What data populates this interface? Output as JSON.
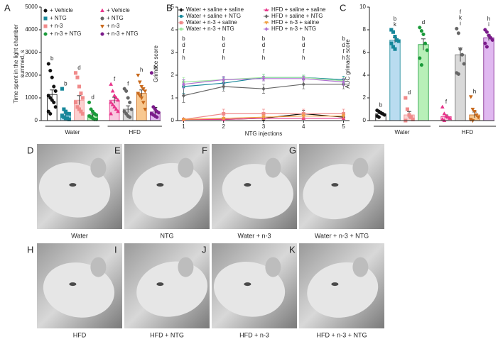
{
  "chart_data": [
    {
      "type": "bar",
      "panel": "A",
      "ylabel": [
        "Time spent in the light chamber",
        "summed, s"
      ],
      "ylim": [
        0,
        5000
      ],
      "yticks": [
        0,
        1000,
        2000,
        3000,
        4000,
        5000
      ],
      "groups": [
        {
          "name": "Water",
          "series": [
            {
              "name": "+ Vehicle",
              "color": "#111111",
              "fill": "#ffffff",
              "marker": "circle",
              "value": 1150,
              "error": 200,
              "letters": [
                "b"
              ],
              "points": [
                2500,
                2200,
                1900,
                1500,
                1300,
                1100,
                1000,
                900,
                800,
                600,
                400,
                300
              ]
            },
            {
              "name": "+ NTG",
              "color": "#16879a",
              "fill": "#b9dcf0",
              "marker": "square",
              "value": 300,
              "error": 120,
              "letters": [
                "b"
              ],
              "points": [
                1400,
                500,
                400,
                300,
                300,
                200,
                150,
                100,
                100,
                50
              ]
            },
            {
              "name": "+ n-3",
              "color": "#f08a8a",
              "fill": "#fbd0d0",
              "marker": "square",
              "value": 900,
              "error": 200,
              "letters": [
                "d"
              ],
              "points": [
                2100,
                1900,
                1500,
                1200,
                1000,
                800,
                600,
                500,
                400,
                300
              ]
            },
            {
              "name": "+ n-3 + NTG",
              "color": "#1a9a3a",
              "fill": "#b8f0b8",
              "marker": "circle",
              "value": 250,
              "error": 80,
              "letters": [
                "d"
              ],
              "points": [
                800,
                500,
                400,
                300,
                250,
                200,
                150,
                100,
                50,
                50
              ]
            }
          ]
        },
        {
          "name": "HFD",
          "series": [
            {
              "name": "+ Vehicle",
              "color": "#e8348a",
              "fill": "#f9c8e0",
              "marker": "triangle",
              "value": 900,
              "error": 130,
              "letters": [
                "f"
              ],
              "points": [
                1600,
                1300,
                1100,
                1000,
                900,
                800,
                700,
                600,
                500,
                400,
                300
              ]
            },
            {
              "name": "+ NTG",
              "color": "#666666",
              "fill": "#d9d9d9",
              "marker": "circle",
              "value": 500,
              "error": 150,
              "letters": [
                "f"
              ],
              "points": [
                1400,
                1300,
                1000,
                800,
                500,
                400,
                300,
                200,
                150
              ]
            },
            {
              "name": "+ n-3",
              "color": "#c8681a",
              "fill": "#f8c890",
              "marker": "triangle-down",
              "value": 1200,
              "error": 150,
              "letters": [
                "h"
              ],
              "points": [
                2000,
                1700,
                1500,
                1400,
                1300,
                1200,
                1100,
                1000,
                800,
                500
              ]
            },
            {
              "name": "+ n-3 + NTG",
              "color": "#7a1a8a",
              "fill": "#e0b8f0",
              "marker": "circle",
              "value": 380,
              "error": 200,
              "letters": [
                "h"
              ],
              "points": [
                2100,
                600,
                500,
                400,
                350,
                300,
                250,
                200,
                150
              ]
            }
          ]
        }
      ]
    },
    {
      "type": "line",
      "panel": "B",
      "ylabel": "Grimace score",
      "xlabel": "NTG injections",
      "x": [
        1,
        2,
        3,
        4,
        5
      ],
      "xlim": [
        0.85,
        5.15
      ],
      "xticks": [
        1,
        2,
        3,
        4,
        5
      ],
      "ylim": [
        0,
        5
      ],
      "yticks": [
        0,
        1,
        2,
        3,
        4,
        5
      ],
      "letters": [
        [
          "b",
          "d",
          "f",
          "h"
        ],
        [
          "b",
          "d",
          "f",
          "h"
        ],
        [
          "b",
          "d",
          "f",
          "h"
        ],
        [
          "b",
          "d",
          "f",
          "h"
        ],
        [
          "b",
          "d",
          "f",
          "h"
        ]
      ],
      "series": [
        {
          "name": "Water + saline + saline",
          "color": "#111111",
          "marker": "diamond",
          "values": [
            0.05,
            0.05,
            0.1,
            0.3,
            0.15
          ],
          "errors": [
            0.03,
            0.05,
            0.08,
            0.15,
            0.1
          ]
        },
        {
          "name": "Water + saline + NTG",
          "color": "#16879a",
          "marker": "circle",
          "values": [
            1.5,
            1.65,
            1.9,
            1.9,
            1.8
          ],
          "errors": [
            0.3,
            0.25,
            0.15,
            0.1,
            0.15
          ]
        },
        {
          "name": "Water + n-3 + saline",
          "color": "#f08a8a",
          "marker": "square",
          "values": [
            0.05,
            0.3,
            0.3,
            0.3,
            0.3
          ],
          "errors": [
            0.05,
            0.2,
            0.2,
            0.2,
            0.2
          ]
        },
        {
          "name": "Water + n-3 + NTG",
          "color": "#9ee89e",
          "marker": "circle",
          "values": [
            1.7,
            1.8,
            1.9,
            1.9,
            1.75
          ],
          "errors": [
            0.2,
            0.15,
            0.15,
            0.1,
            0.15
          ]
        },
        {
          "name": "HFD + saline + saline",
          "color": "#e8348a",
          "marker": "triangle",
          "values": [
            0.05,
            0.05,
            0.1,
            0.1,
            0.1
          ],
          "errors": [
            0.03,
            0.03,
            0.05,
            0.05,
            0.05
          ]
        },
        {
          "name": "HFD + saline + NTG",
          "color": "#666666",
          "marker": "diamond",
          "values": [
            1.1,
            1.5,
            1.4,
            1.6,
            1.6
          ],
          "errors": [
            0.3,
            0.2,
            0.2,
            0.2,
            0.2
          ]
        },
        {
          "name": "HFD + n-3 + saline",
          "color": "#f0a040",
          "marker": "triangle-down",
          "values": [
            0.05,
            0.1,
            0.15,
            0.2,
            0.2
          ],
          "errors": [
            0.03,
            0.05,
            0.1,
            0.1,
            0.1
          ]
        },
        {
          "name": "HFD + n-3 + NTG",
          "color": "#b070d0",
          "marker": "diamond",
          "values": [
            1.6,
            1.8,
            1.85,
            1.85,
            1.7
          ],
          "errors": [
            0.2,
            0.15,
            0.1,
            0.1,
            0.15
          ]
        }
      ]
    },
    {
      "type": "bar",
      "panel": "C",
      "ylabel": "AUC grimace score",
      "ylim": [
        0,
        10
      ],
      "yticks": [
        0,
        2,
        4,
        6,
        8,
        10
      ],
      "groups": [
        {
          "name": "Water",
          "series": [
            {
              "color": "#111111",
              "fill": "#ffffff",
              "marker": "circle",
              "value": 0.6,
              "error": 0.1,
              "letters": [
                "b"
              ],
              "points": [
                0.9,
                0.8,
                0.7,
                0.6,
                0.5,
                0.4,
                0.3
              ]
            },
            {
              "color": "#16879a",
              "fill": "#b9dcf0",
              "marker": "square",
              "value": 7.1,
              "error": 0.25,
              "letters": [
                "b",
                "k"
              ],
              "points": [
                8.0,
                7.8,
                7.4,
                7.1,
                7.0,
                6.8,
                6.5,
                6.3
              ]
            },
            {
              "color": "#f08a8a",
              "fill": "#fbd0d0",
              "marker": "square",
              "value": 0.5,
              "error": 0.3,
              "letters": [
                "d"
              ],
              "points": [
                2.0,
                1.0,
                0.5,
                0.3,
                0.1,
                0.0
              ]
            },
            {
              "color": "#1a9a3a",
              "fill": "#b8f0b8",
              "marker": "circle",
              "value": 6.7,
              "error": 0.5,
              "letters": [
                "d"
              ],
              "points": [
                8.2,
                7.9,
                7.6,
                6.8,
                6.2,
                5.5,
                4.9
              ]
            }
          ]
        },
        {
          "name": "HFD",
          "series": [
            {
              "color": "#e8348a",
              "fill": "#f9c8e0",
              "marker": "triangle",
              "value": 0.35,
              "error": 0.15,
              "letters": [
                "f"
              ],
              "points": [
                1.2,
                0.6,
                0.4,
                0.3,
                0.2,
                0.1,
                0.0
              ]
            },
            {
              "color": "#666666",
              "fill": "#d9d9d9",
              "marker": "circle",
              "value": 5.8,
              "error": 0.6,
              "letters": [
                "f",
                "k",
                "i"
              ],
              "points": [
                8.1,
                7.7,
                6.3,
                5.8,
                5.0,
                4.2,
                4.1
              ]
            },
            {
              "color": "#c8681a",
              "fill": "#f8c890",
              "marker": "triangle-down",
              "value": 0.5,
              "error": 0.25,
              "letters": [
                "h"
              ],
              "points": [
                2.1,
                1.0,
                0.8,
                0.5,
                0.3,
                0.1,
                0.0
              ]
            },
            {
              "color": "#7a1a8a",
              "fill": "#e0b8f0",
              "marker": "circle",
              "value": 7.3,
              "error": 0.25,
              "letters": [
                "h",
                "i"
              ],
              "points": [
                8.0,
                7.8,
                7.5,
                7.3,
                7.1,
                6.8,
                6.5
              ]
            }
          ]
        }
      ]
    }
  ],
  "photos": [
    {
      "label": "D",
      "caption": "Water"
    },
    {
      "label": "E",
      "caption": "NTG"
    },
    {
      "label": "F",
      "caption": "Water + n-3"
    },
    {
      "label": "G",
      "caption": "Water + n-3 + NTG"
    },
    {
      "label": "H",
      "caption": "HFD"
    },
    {
      "label": "I",
      "caption": "HFD + NTG"
    },
    {
      "label": "J",
      "caption": "HFD + n-3"
    },
    {
      "label": "K",
      "caption": "HFD + n-3 + NTG"
    }
  ]
}
